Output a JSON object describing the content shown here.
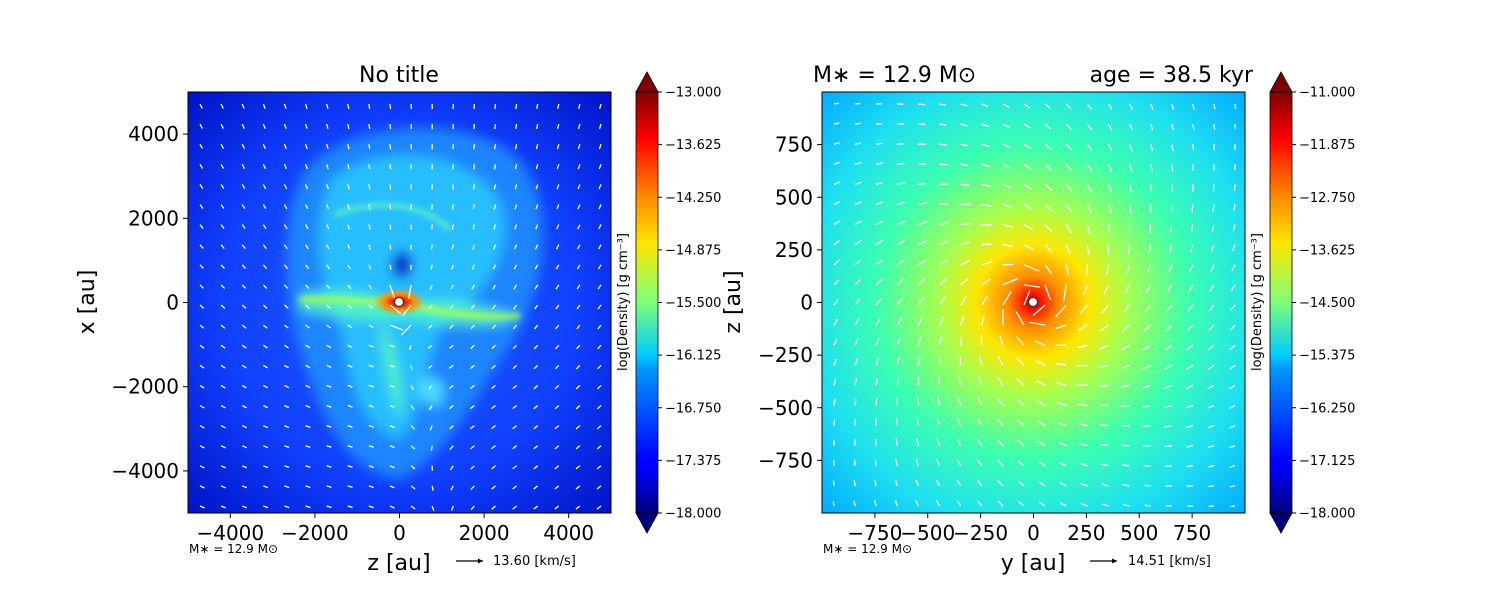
{
  "chart_data": [
    {
      "type": "heatmap",
      "title": "No title",
      "xlabel": "z [au]",
      "ylabel": "x [au]",
      "xlim": [
        -5000,
        5000
      ],
      "ylim": [
        -5000,
        5000
      ],
      "xticks": [
        -4000,
        -2000,
        0,
        2000,
        4000
      ],
      "yticks": [
        -4000,
        -2000,
        0,
        2000,
        4000
      ],
      "xtick_labels": [
        "−4000",
        "−2000",
        "0",
        "2000",
        "4000"
      ],
      "ytick_labels": [
        "−4000",
        "−2000",
        "0",
        "2000",
        "4000"
      ],
      "colorbar": {
        "label": "log(Density) [g cm⁻³]",
        "min": -18.0,
        "max": -13.0,
        "colormap": "jet",
        "extend": "both",
        "ticks": [
          -13.0,
          -13.625,
          -14.25,
          -14.875,
          -15.5,
          -16.125,
          -16.75,
          -17.375,
          -18.0
        ],
        "tick_labels": [
          "−13.000",
          "−13.625",
          "−14.250",
          "−14.875",
          "−15.500",
          "−16.125",
          "−16.750",
          "−17.375",
          "−18.000"
        ]
      },
      "annotation": "M∗ = 12.9 M⊙",
      "quiver_key": "13.60 [km/s]"
    },
    {
      "type": "heatmap",
      "title_left": "M∗ = 12.9 M⊙",
      "title_right": "age = 38.5 kyr",
      "xlabel": "y [au]",
      "ylabel": "z [au]",
      "xlim": [
        -1000,
        1000
      ],
      "ylim": [
        -1000,
        1000
      ],
      "xticks": [
        -750,
        -500,
        -250,
        0,
        250,
        500,
        750
      ],
      "yticks": [
        -750,
        -500,
        -250,
        0,
        250,
        500,
        750
      ],
      "xtick_labels": [
        "−750",
        "−500",
        "−250",
        "0",
        "250",
        "500",
        "750"
      ],
      "ytick_labels": [
        "−750",
        "−500",
        "−250",
        "0",
        "250",
        "500",
        "750"
      ],
      "colorbar": {
        "label": "log(Density) [g cm⁻³]",
        "min": -18.0,
        "max": -11.0,
        "colormap": "jet",
        "extend": "both",
        "ticks": [
          -11.0,
          -11.875,
          -12.75,
          -13.625,
          -14.5,
          -15.375,
          -16.25,
          -17.125,
          -18.0
        ],
        "tick_labels": [
          "−11.000",
          "−11.875",
          "−12.750",
          "−13.625",
          "−14.500",
          "−15.375",
          "−16.250",
          "−17.125",
          "−18.000"
        ]
      },
      "annotation": "M∗ = 12.9 M⊙",
      "quiver_key": "14.51 [km/s]"
    }
  ]
}
